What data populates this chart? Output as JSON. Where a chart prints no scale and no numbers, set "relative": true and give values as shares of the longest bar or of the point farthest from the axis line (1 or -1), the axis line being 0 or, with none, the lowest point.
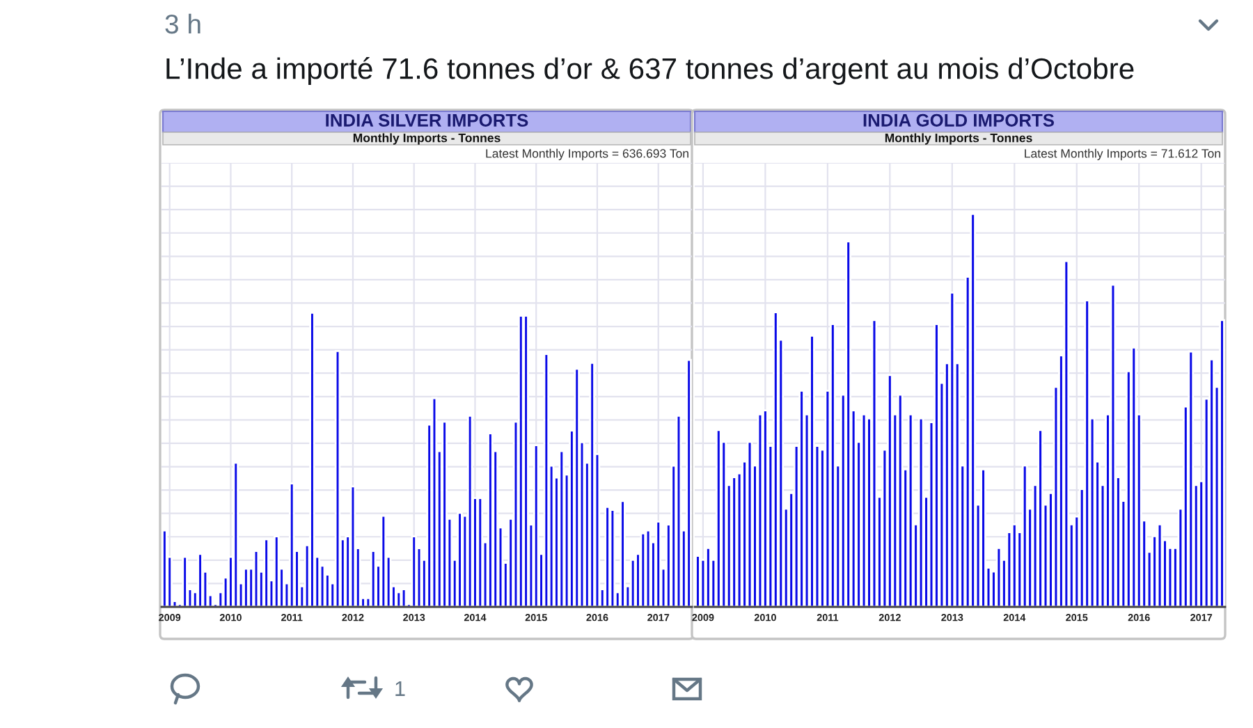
{
  "chart_data": [
    {
      "type": "other",
      "title": "L’Inde a importé 71.6 tonnes d’or & 637 tonnes d’argent au mois d’Octobre",
      "annotations": [
        "3 h",
        "1"
      ]
    },
    {
      "type": "bar",
      "title": "INDIA SILVER IMPORTS",
      "subtitle": "Monthly Imports - Tonnes",
      "annotations": [
        "Latest Monthly Imports = 636.693 Ton"
      ],
      "relative": true,
      "color": "#0a0ae8",
      "grid": true,
      "categories": [
        null,
        "2009",
        null,
        null,
        null,
        null,
        null,
        null,
        null,
        null,
        null,
        null,
        null,
        "2010",
        null,
        null,
        null,
        null,
        null,
        null,
        null,
        null,
        null,
        null,
        null,
        "2011",
        null,
        null,
        null,
        null,
        null,
        null,
        null,
        null,
        null,
        null,
        null,
        "2012",
        null,
        null,
        null,
        null,
        null,
        null,
        null,
        null,
        null,
        null,
        null,
        "2013",
        null,
        null,
        null,
        null,
        null,
        null,
        null,
        null,
        null,
        null,
        null,
        "2014",
        null,
        null,
        null,
        null,
        null,
        null,
        null,
        null,
        null,
        null,
        null,
        "2015",
        null,
        null,
        null,
        null,
        null,
        null,
        null,
        null,
        null,
        null,
        null,
        "2016",
        null,
        null,
        null,
        null,
        null,
        null,
        null,
        null,
        null,
        null,
        null,
        "2017",
        null,
        null,
        null,
        null,
        null,
        null
      ],
      "values": [
        0.26,
        0.17,
        0.02,
        0.01,
        0.17,
        0.06,
        0.05,
        0.18,
        0.12,
        0.04,
        0.01,
        0.05,
        0.1,
        0.17,
        0.49,
        0.08,
        0.13,
        0.13,
        0.19,
        0.12,
        0.23,
        0.09,
        0.24,
        0.13,
        0.08,
        0.42,
        0.19,
        0.07,
        0.21,
        1.0,
        0.17,
        0.14,
        0.11,
        0.08,
        0.87,
        0.23,
        0.24,
        0.41,
        0.2,
        0.03,
        0.03,
        0.19,
        0.14,
        0.31,
        0.17,
        0.07,
        0.05,
        0.06,
        0.01,
        0.24,
        0.2,
        0.16,
        0.62,
        0.71,
        0.53,
        0.63,
        0.3,
        0.16,
        0.32,
        0.31,
        0.65,
        0.37,
        0.37,
        0.22,
        0.59,
        0.53,
        0.27,
        0.15,
        0.3,
        0.63,
        0.99,
        0.99,
        0.28,
        0.55,
        0.18,
        0.86,
        0.48,
        0.44,
        0.53,
        0.45,
        0.6,
        0.81,
        0.56,
        0.49,
        0.83,
        0.52,
        0.06,
        0.34,
        0.33,
        0.05,
        0.36,
        0.07,
        0.16,
        0.18,
        0.25,
        0.26,
        0.22,
        0.29,
        0.13,
        0.28,
        0.48,
        0.65,
        0.26,
        0.84
      ]
    },
    {
      "type": "bar",
      "title": "INDIA GOLD IMPORTS",
      "subtitle": "Monthly Imports - Tonnes",
      "annotations": [
        "Latest Monthly Imports = 71.612 Ton"
      ],
      "relative": true,
      "color": "#0a0ae8",
      "grid": true,
      "categories": [
        null,
        "2009",
        null,
        null,
        null,
        null,
        null,
        null,
        null,
        null,
        null,
        null,
        null,
        "2010",
        null,
        null,
        null,
        null,
        null,
        null,
        null,
        null,
        null,
        null,
        null,
        "2011",
        null,
        null,
        null,
        null,
        null,
        null,
        null,
        null,
        null,
        null,
        null,
        "2012",
        null,
        null,
        null,
        null,
        null,
        null,
        null,
        null,
        null,
        null,
        null,
        "2013",
        null,
        null,
        null,
        null,
        null,
        null,
        null,
        null,
        null,
        null,
        null,
        "2014",
        null,
        null,
        null,
        null,
        null,
        null,
        null,
        null,
        null,
        null,
        null,
        "2015",
        null,
        null,
        null,
        null,
        null,
        null,
        null,
        null,
        null,
        null,
        null,
        "2016",
        null,
        null,
        null,
        null,
        null,
        null,
        null,
        null,
        null,
        null,
        null,
        "2017",
        null,
        null,
        null,
        null
      ],
      "values": [
        0.13,
        0.12,
        0.15,
        0.12,
        0.45,
        0.42,
        0.31,
        0.33,
        0.34,
        0.37,
        0.42,
        0.36,
        0.49,
        0.5,
        0.41,
        0.75,
        0.68,
        0.25,
        0.29,
        0.41,
        0.55,
        0.49,
        0.69,
        0.41,
        0.4,
        0.55,
        0.72,
        0.36,
        0.54,
        0.93,
        0.5,
        0.42,
        0.49,
        0.48,
        0.73,
        0.28,
        0.4,
        0.59,
        0.49,
        0.54,
        0.35,
        0.49,
        0.21,
        0.48,
        0.28,
        0.47,
        0.72,
        0.57,
        0.62,
        0.8,
        0.62,
        0.36,
        0.84,
        1.0,
        0.26,
        0.35,
        0.1,
        0.09,
        0.15,
        0.12,
        0.19,
        0.21,
        0.19,
        0.36,
        0.25,
        0.31,
        0.45,
        0.26,
        0.29,
        0.56,
        0.64,
        0.88,
        0.21,
        0.23,
        0.3,
        0.78,
        0.48,
        0.37,
        0.31,
        0.49,
        0.82,
        0.33,
        0.27,
        0.6,
        0.66,
        0.49,
        0.22,
        0.14,
        0.18,
        0.21,
        0.17,
        0.15,
        0.15,
        0.25,
        0.51,
        0.65,
        0.31,
        0.32,
        0.53,
        0.63,
        0.56,
        0.73
      ]
    }
  ]
}
